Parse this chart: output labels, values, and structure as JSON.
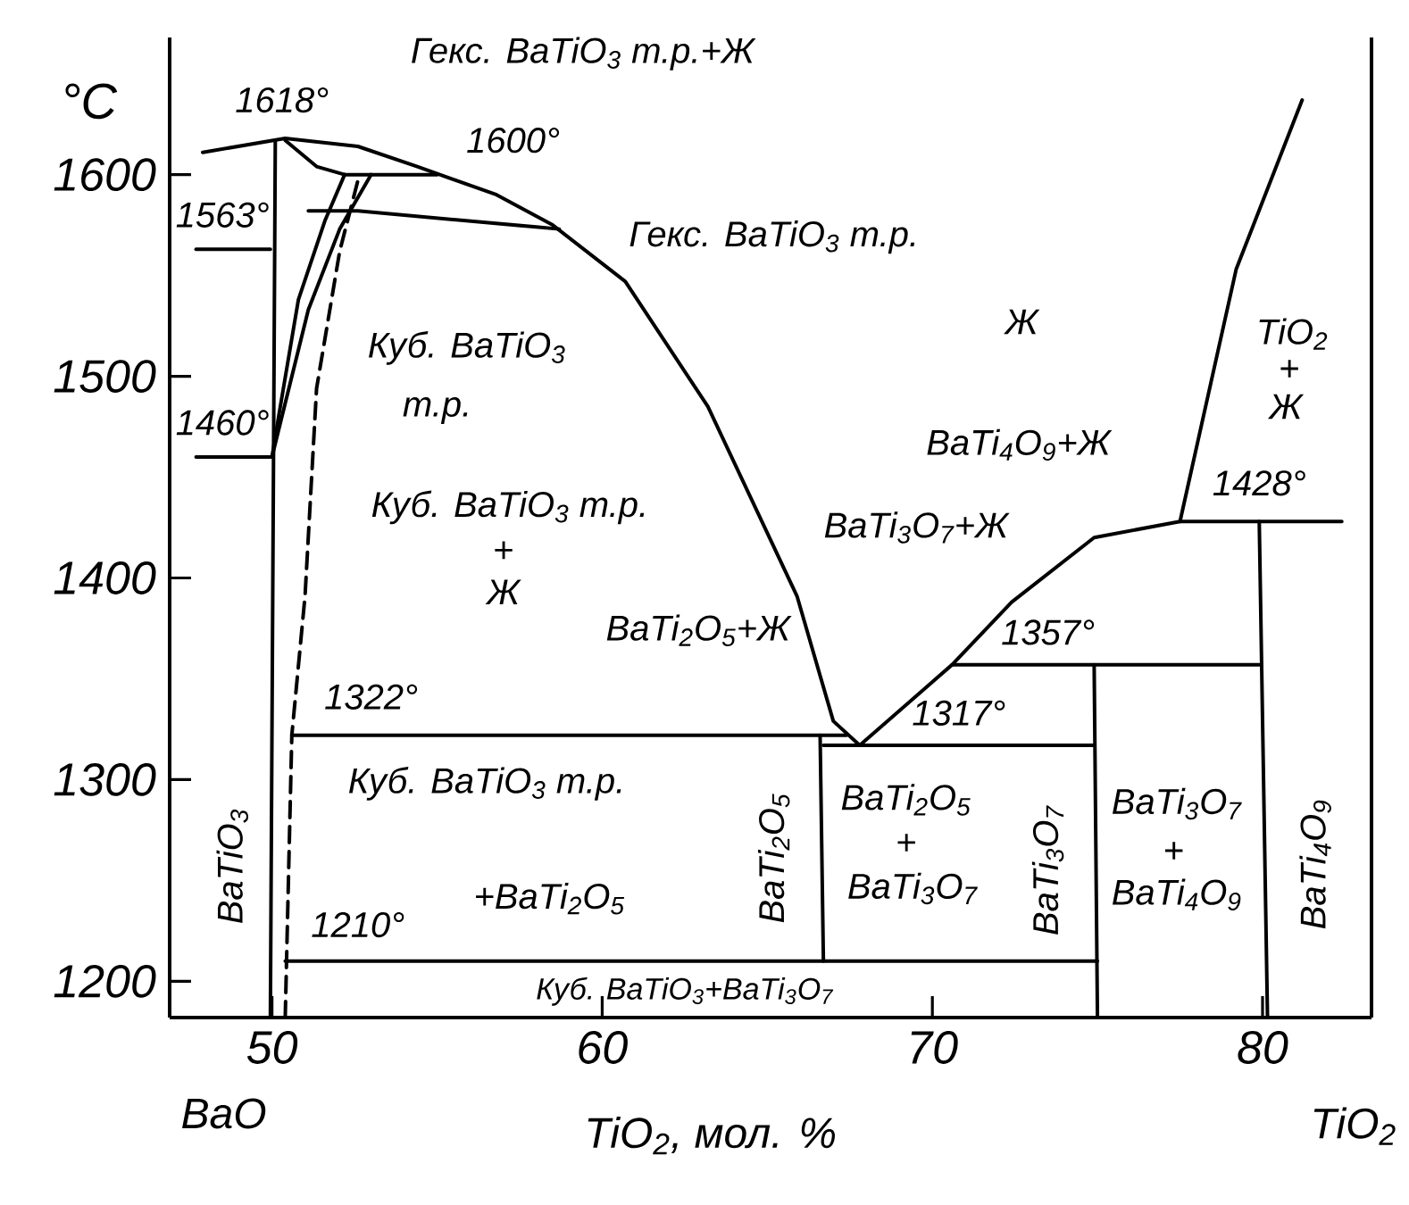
{
  "chart_data": {
    "type": "line",
    "xlabel": "TiO$_{2}$, мол. %",
    "ylabel": "°C",
    "xlim": [
      46.9,
      83.3
    ],
    "ylim": [
      1182,
      1668
    ],
    "xticks": [
      50,
      60,
      70,
      80
    ],
    "yticks": [
      1200,
      1300,
      1400,
      1500,
      1600
    ],
    "series": [
      {
        "color": "#000000",
        "x": [
          47.9,
          50.4,
          52.6,
          54.4,
          56.8,
          58.5,
          60.7,
          63.2,
          65.9,
          67.0,
          67.8,
          70.6,
          72.4,
          74.9,
          77.5,
          82.4
        ],
        "values": [
          1611,
          1618,
          1614,
          1604,
          1590,
          1575,
          1547,
          1485,
          1391,
          1329,
          1317,
          1357,
          1388,
          1420,
          1428,
          1428
        ]
      },
      {
        "color": "#000000",
        "x": [
          77.5,
          79.2,
          81.2
        ],
        "values": [
          1428,
          1553,
          1637
        ]
      },
      {
        "color": "#000000",
        "x": [
          79.9,
          80.15
        ],
        "values": [
          1428,
          1182
        ]
      },
      {
        "color": "#000000",
        "x": [
          70.6,
          79.9
        ],
        "values": [
          1357,
          1357
        ]
      },
      {
        "color": "#000000",
        "x": [
          74.9,
          75
        ],
        "values": [
          1357,
          1182
        ]
      },
      {
        "color": "#000000",
        "x": [
          66.7,
          74.9
        ],
        "values": [
          1317,
          1317
        ]
      },
      {
        "color": "#000000",
        "x": [
          66.6,
          66.7
        ],
        "values": [
          1322,
          1210
        ]
      },
      {
        "color": "#000000",
        "x": [
          50.6,
          67.4
        ],
        "values": [
          1322,
          1322
        ]
      },
      {
        "color": "#000000",
        "x": [
          50.4,
          75
        ],
        "values": [
          1210,
          1210
        ]
      },
      {
        "color": "#000000",
        "x": [
          50.1,
          49.95
        ],
        "values": [
          1617,
          1182
        ]
      },
      {
        "color": "#000000",
        "line_style": "dashed",
        "x": [
          50.4,
          50.6,
          51.0,
          51.35,
          52.05,
          52.6
        ],
        "values": [
          1182,
          1322,
          1391,
          1494,
          1562,
          1597
        ]
      },
      {
        "color": "#000000",
        "x": [
          50.0,
          50.2,
          50.8,
          51.6,
          52.2
        ],
        "values": [
          1460,
          1480,
          1538,
          1577,
          1600
        ]
      },
      {
        "color": "#000000",
        "x": [
          50.0,
          50.3,
          51.1,
          52.05,
          53.0
        ],
        "values": [
          1460,
          1480,
          1533,
          1573,
          1600
        ]
      },
      {
        "color": "#000000",
        "x": [
          50.4,
          51.35,
          52.2,
          55.0
        ],
        "values": [
          1617,
          1604,
          1600,
          1600
        ]
      },
      {
        "color": "#000000",
        "x": [
          51.1,
          52.6,
          58.0,
          58.7
        ],
        "values": [
          1582,
          1582,
          1574,
          1573
        ]
      },
      {
        "color": "#000000",
        "x": [
          47.7,
          49.95
        ],
        "values": [
          1563,
          1563
        ]
      },
      {
        "color": "#000000",
        "x": [
          47.7,
          49.95
        ],
        "values": [
          1460,
          1460
        ]
      }
    ],
    "annotations": [
      "BaO",
      "TiO$_{2}$",
      "1618°",
      "Гекс. BaTiO$_{3}$ т.р.+Ж",
      "1600°",
      "Гекс. BaTiO$_{3}$ т.р.",
      "1563°",
      "1460°",
      "Куб. BaTiO$_{3}$",
      "т.р.",
      "Куб. BaTiO$_{3}$ т.р.",
      "+",
      "Ж",
      "Ж",
      "BaTi$_{4}$O$_{9}$+Ж",
      "BaTi$_{3}$O$_{7}$+Ж",
      "TiO$_{2}$",
      "+",
      "Ж",
      "1428°",
      "1357°",
      "1317°",
      "BaTi$_{2}$O$_{5}$+Ж",
      "1322°",
      "Куб. BaTiO$_{3}$ т.р.",
      "+BaTi$_{2}$O$_{5}$",
      "1210°",
      "Куб. BaTiO$_{3}$+BaTi$_{3}$O$_{7}$",
      "BaTi$_{2}$O$_{5}$",
      "+",
      "BaTi$_{3}$O$_{7}$",
      "BaTi$_{3}$O$_{7}$",
      "+",
      "BaTi$_{4}$O$_{9}$",
      "BaTiO$_{3}$",
      "BaTi$_{2}$O$_{5}$",
      "BaTi$_{3}$O$_{7}$",
      "BaTi$_{4}$O$_{9}$"
    ]
  }
}
